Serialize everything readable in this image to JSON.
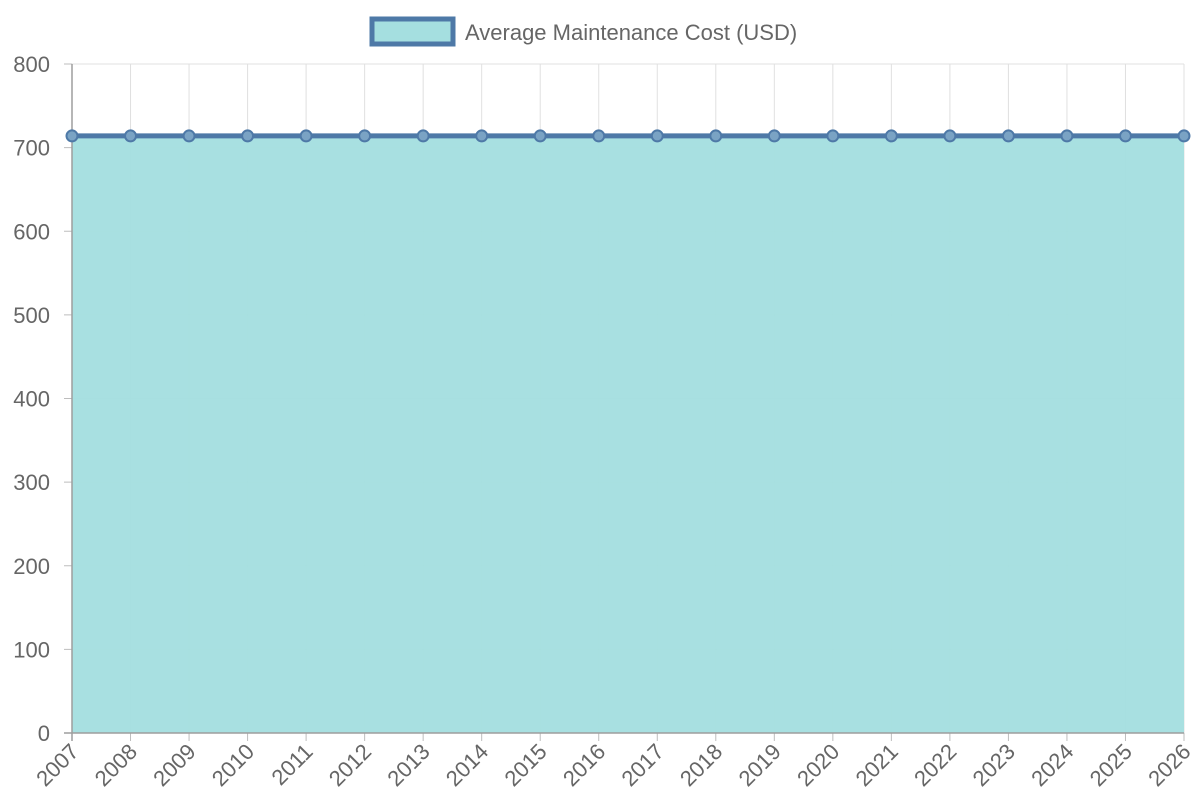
{
  "chart_data": {
    "type": "area",
    "categories": [
      "2007",
      "2008",
      "2009",
      "2010",
      "2011",
      "2012",
      "2013",
      "2014",
      "2015",
      "2016",
      "2017",
      "2018",
      "2019",
      "2020",
      "2021",
      "2022",
      "2023",
      "2024",
      "2025",
      "2026"
    ],
    "series": [
      {
        "name": "Average Maintenance Cost (USD)",
        "values": [
          714,
          714,
          714,
          714,
          714,
          714,
          714,
          714,
          714,
          714,
          714,
          714,
          714,
          714,
          714,
          714,
          714,
          714,
          714,
          714
        ],
        "line_color": "#4e79a7",
        "fill_color": "#a5dfe0"
      }
    ],
    "ylim": [
      0,
      800
    ],
    "yticks": [
      0,
      100,
      200,
      300,
      400,
      500,
      600,
      700,
      800
    ],
    "grid": true,
    "legend": "top-center"
  }
}
